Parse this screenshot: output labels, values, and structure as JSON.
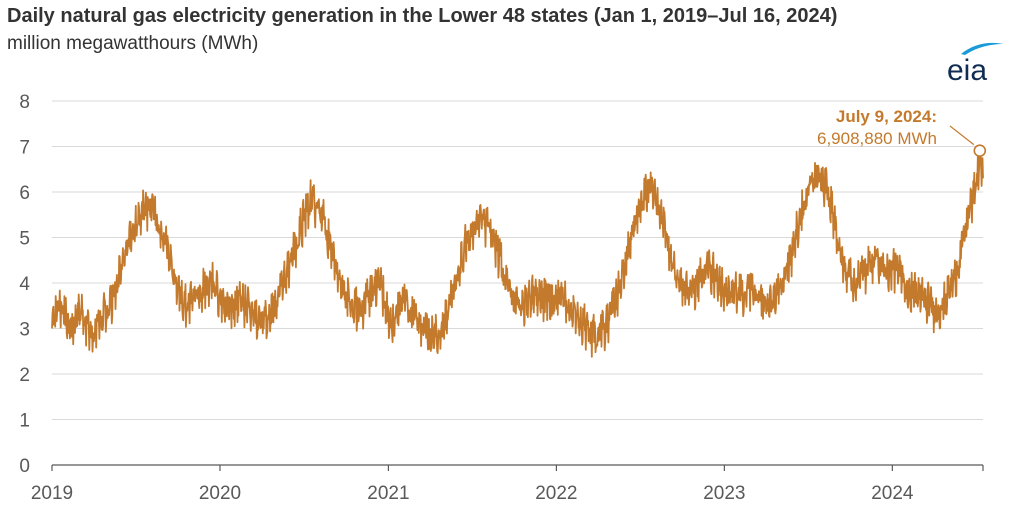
{
  "header": {
    "title": "Daily natural gas electricity generation in the Lower 48 states (Jan 1, 2019–Jul 16, 2024)",
    "subtitle": "million megawatthours (MWh)"
  },
  "logo": {
    "text": "eia",
    "color": "#0f2d52",
    "accent": "#1a9ad6"
  },
  "colors": {
    "series": "#c47a2c",
    "grid": "#d9d9d9",
    "axis": "#595959",
    "text": "#333333"
  },
  "chart_data": {
    "type": "line",
    "title": "Daily natural gas electricity generation in the Lower 48 states (Jan 1, 2019–Jul 16, 2024)",
    "ylabel": "million megawatthours (MWh)",
    "xlabel": "",
    "ylim": [
      0,
      8
    ],
    "yticks": [
      "0",
      "1",
      "2",
      "3",
      "4",
      "5",
      "6",
      "7",
      "8"
    ],
    "xlim": [
      "2019-01-01",
      "2024-07-16"
    ],
    "xticks": [
      "2019",
      "2020",
      "2021",
      "2022",
      "2023",
      "2024"
    ],
    "grid": true,
    "legend": "none",
    "series": [
      {
        "name": "",
        "x": [
          "2019-01-01",
          "2019-01-15",
          "2019-02-01",
          "2019-02-15",
          "2019-03-01",
          "2019-03-15",
          "2019-04-01",
          "2019-04-15",
          "2019-05-01",
          "2019-05-15",
          "2019-06-01",
          "2019-06-15",
          "2019-07-01",
          "2019-07-15",
          "2019-08-01",
          "2019-08-15",
          "2019-09-01",
          "2019-09-15",
          "2019-10-01",
          "2019-10-15",
          "2019-11-01",
          "2019-11-15",
          "2019-12-01",
          "2019-12-15",
          "2020-01-01",
          "2020-01-15",
          "2020-02-01",
          "2020-02-15",
          "2020-03-01",
          "2020-03-15",
          "2020-04-01",
          "2020-04-15",
          "2020-05-01",
          "2020-05-15",
          "2020-06-01",
          "2020-06-15",
          "2020-07-01",
          "2020-07-15",
          "2020-08-01",
          "2020-08-15",
          "2020-09-01",
          "2020-09-15",
          "2020-10-01",
          "2020-10-15",
          "2020-11-01",
          "2020-11-15",
          "2020-12-01",
          "2020-12-15",
          "2021-01-01",
          "2021-01-15",
          "2021-02-01",
          "2021-02-15",
          "2021-03-01",
          "2021-03-15",
          "2021-04-01",
          "2021-04-15",
          "2021-05-01",
          "2021-05-15",
          "2021-06-01",
          "2021-06-15",
          "2021-07-01",
          "2021-07-15",
          "2021-08-01",
          "2021-08-15",
          "2021-09-01",
          "2021-09-15",
          "2021-10-01",
          "2021-10-15",
          "2021-11-01",
          "2021-11-15",
          "2021-12-01",
          "2021-12-15",
          "2022-01-01",
          "2022-01-15",
          "2022-02-01",
          "2022-02-15",
          "2022-03-01",
          "2022-03-15",
          "2022-04-01",
          "2022-04-15",
          "2022-05-01",
          "2022-05-15",
          "2022-06-01",
          "2022-06-15",
          "2022-07-01",
          "2022-07-15",
          "2022-08-01",
          "2022-08-15",
          "2022-09-01",
          "2022-09-15",
          "2022-10-01",
          "2022-10-15",
          "2022-11-01",
          "2022-11-15",
          "2022-12-01",
          "2022-12-15",
          "2023-01-01",
          "2023-01-15",
          "2023-02-01",
          "2023-02-15",
          "2023-03-01",
          "2023-03-15",
          "2023-04-01",
          "2023-04-15",
          "2023-05-01",
          "2023-05-15",
          "2023-06-01",
          "2023-06-15",
          "2023-07-01",
          "2023-07-15",
          "2023-08-01",
          "2023-08-15",
          "2023-09-01",
          "2023-09-15",
          "2023-10-01",
          "2023-10-15",
          "2023-11-01",
          "2023-11-15",
          "2023-12-01",
          "2023-12-15",
          "2024-01-01",
          "2024-01-15",
          "2024-02-01",
          "2024-02-15",
          "2024-03-01",
          "2024-03-15",
          "2024-04-01",
          "2024-04-15",
          "2024-05-01",
          "2024-05-15",
          "2024-06-01",
          "2024-06-15",
          "2024-07-01",
          "2024-07-09",
          "2024-07-16"
        ],
        "y": [
          3.0,
          3.6,
          3.3,
          3.1,
          3.5,
          3.2,
          2.9,
          3.3,
          3.5,
          3.8,
          4.4,
          4.9,
          5.3,
          5.7,
          5.8,
          5.5,
          5.1,
          4.5,
          4.0,
          3.6,
          3.7,
          3.9,
          4.0,
          4.1,
          3.8,
          3.6,
          3.5,
          3.7,
          3.6,
          3.4,
          3.2,
          3.3,
          3.5,
          4.0,
          4.5,
          5.0,
          5.5,
          5.9,
          5.8,
          5.4,
          4.8,
          4.2,
          3.8,
          3.6,
          3.5,
          3.7,
          3.9,
          4.0,
          3.4,
          3.2,
          3.9,
          3.4,
          3.3,
          3.1,
          2.9,
          3.0,
          3.2,
          3.6,
          4.3,
          4.9,
          5.2,
          5.5,
          5.4,
          5.1,
          4.6,
          4.0,
          3.7,
          3.5,
          3.7,
          3.9,
          3.8,
          3.6,
          3.6,
          3.9,
          3.5,
          3.3,
          3.2,
          3.0,
          2.9,
          3.1,
          3.4,
          3.9,
          4.5,
          5.2,
          5.8,
          6.2,
          6.0,
          5.6,
          4.9,
          4.3,
          4.0,
          3.9,
          4.0,
          4.3,
          4.4,
          4.2,
          3.9,
          3.8,
          3.9,
          3.8,
          3.9,
          3.7,
          3.6,
          3.6,
          3.9,
          4.3,
          4.9,
          5.6,
          6.1,
          6.3,
          6.4,
          6.1,
          5.3,
          4.6,
          4.2,
          4.1,
          4.3,
          4.5,
          4.6,
          4.4,
          4.4,
          4.3,
          4.0,
          3.9,
          3.8,
          3.7,
          3.5,
          3.5,
          3.8,
          4.2,
          4.8,
          5.6,
          6.2,
          6.9,
          6.3
        ]
      }
    ],
    "annotation": {
      "title": "July 9, 2024:",
      "value": "6,908,880 MWh",
      "x": "2024-07-09",
      "y": 6.90888
    }
  }
}
